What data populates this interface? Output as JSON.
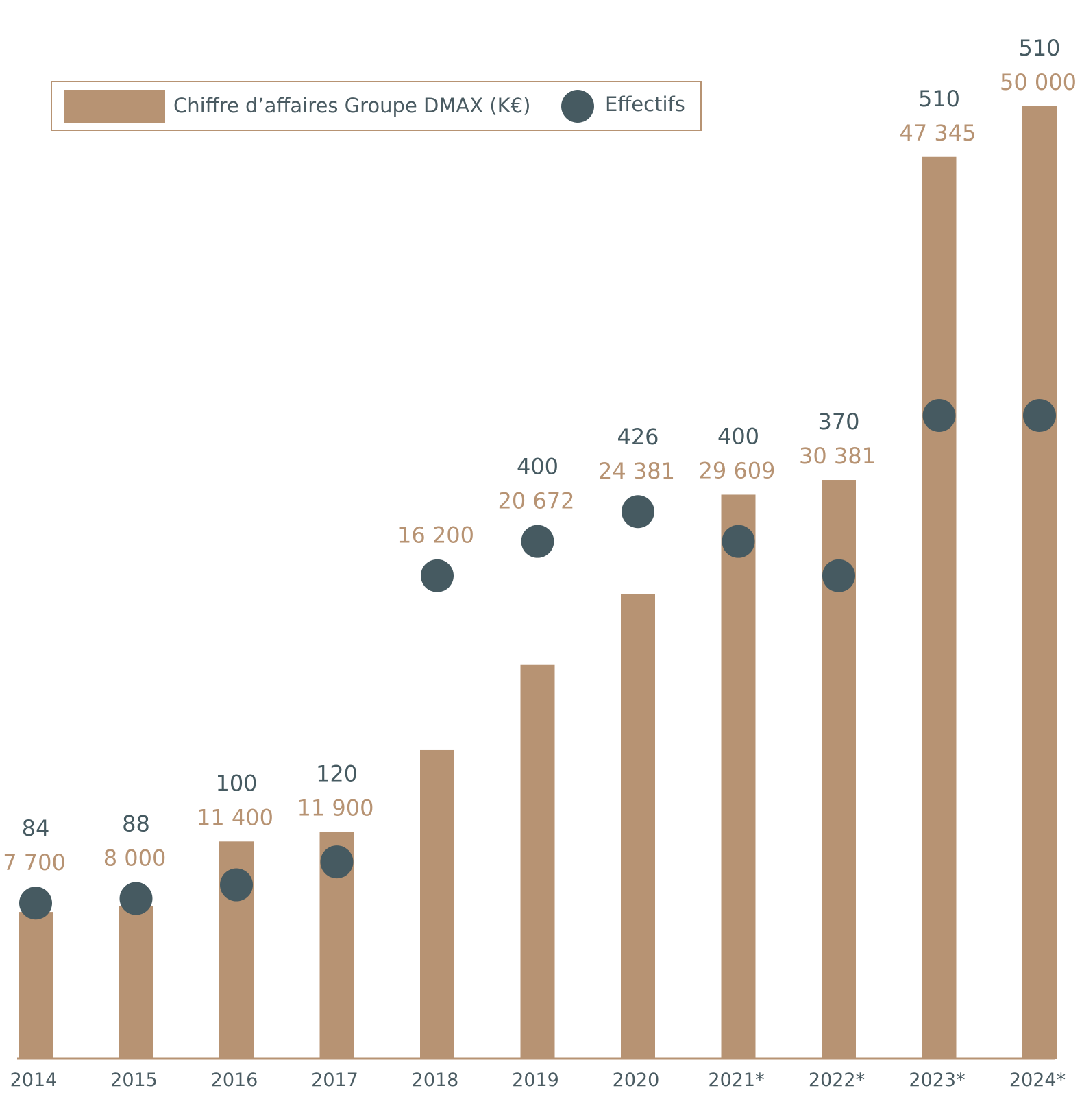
{
  "chart_data": {
    "type": "bar",
    "categories": [
      "2014",
      "2015",
      "2016",
      "2017",
      "2018",
      "2019",
      "2020",
      "2021*",
      "2022*",
      "2023*",
      "2024*"
    ],
    "series": [
      {
        "name": "Chiffre d’affaires Groupe DMAX (K€)",
        "type": "bar",
        "color": "#b79373",
        "values": [
          7700,
          8000,
          11400,
          11900,
          16200,
          20672,
          24381,
          29609,
          30381,
          47345,
          50000
        ],
        "labels": [
          "7 700",
          "8 000",
          "11 400",
          "11 900",
          "16 200",
          "20 672",
          "24 381",
          "29 609",
          "30 381",
          "47 345",
          "50 000"
        ]
      },
      {
        "name": "Effectifs",
        "type": "scatter",
        "color": "#465a61",
        "values": [
          84,
          88,
          100,
          120,
          370,
          400,
          426,
          400,
          370,
          510,
          510
        ],
        "labels": [
          "84",
          "88",
          "100",
          "120",
          "",
          "400",
          "426",
          "400",
          "370",
          "510",
          "510"
        ]
      }
    ],
    "legend": {
      "position": "top-left"
    },
    "grid": false,
    "revenue_range": [
      0,
      50000
    ],
    "employee_range": [
      0,
      700
    ]
  }
}
